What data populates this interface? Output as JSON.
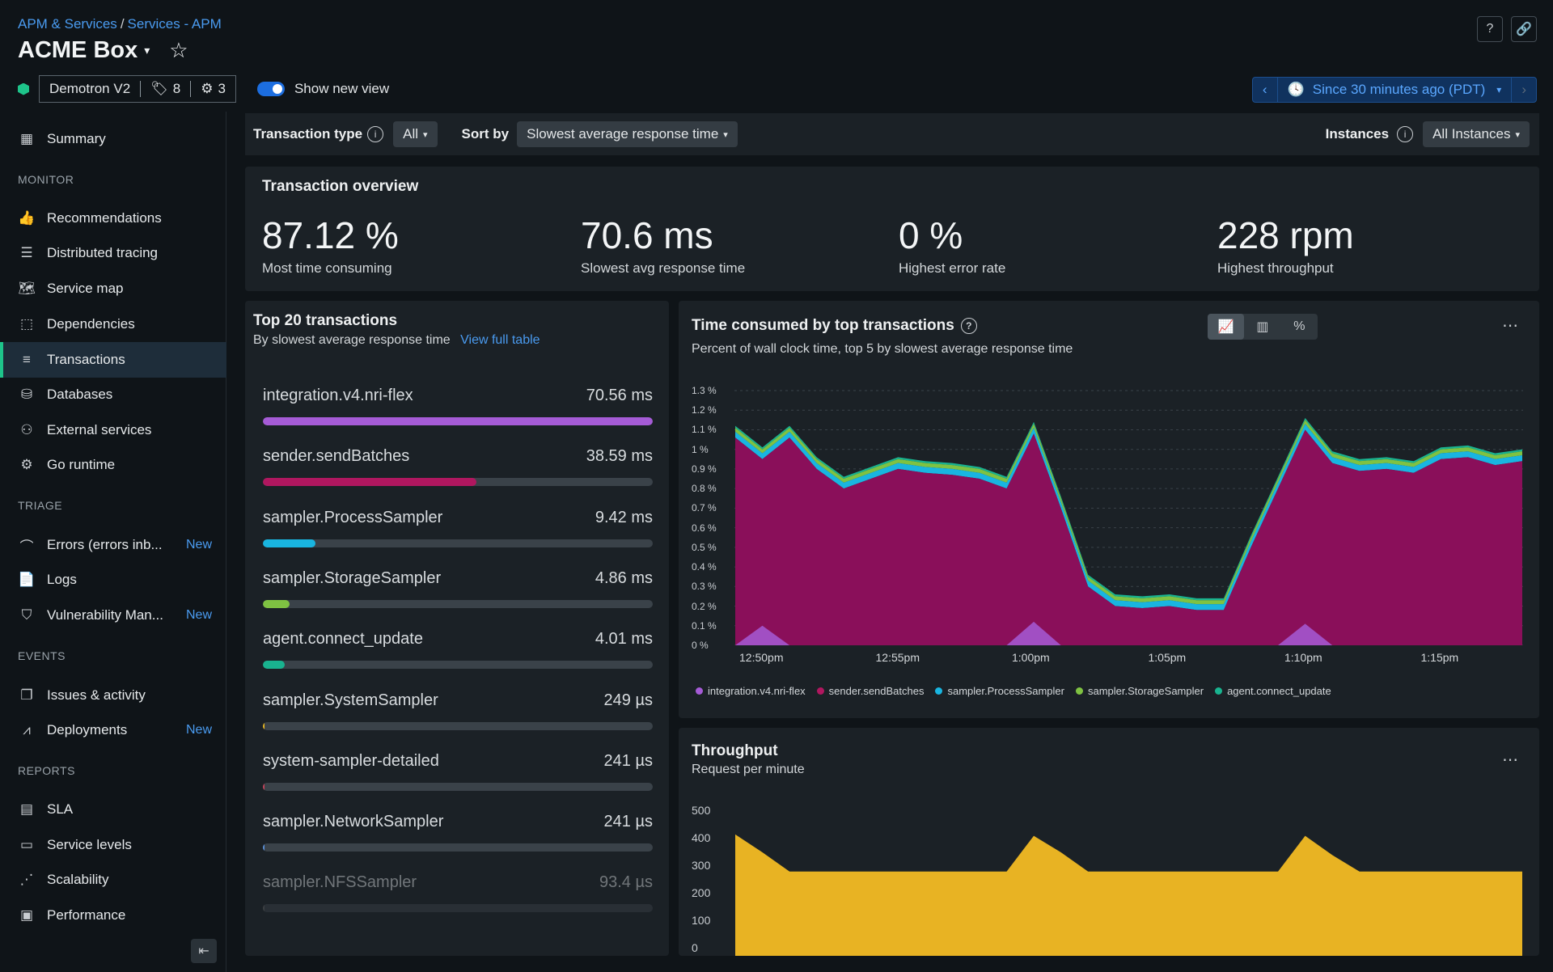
{
  "header": {
    "breadcrumb": [
      "APM & Services",
      "Services - APM"
    ],
    "title": "ACME Box",
    "entity": "Demotron V2",
    "tags_count": "8",
    "hosts_count": "3",
    "toggle_label": "Show new view",
    "time_range": "Since 30 minutes ago (PDT)"
  },
  "sidebar": {
    "summary": "Summary",
    "sections": {
      "monitor": "MONITOR",
      "triage": "TRIAGE",
      "events": "EVENTS",
      "reports": "REPORTS"
    },
    "items": [
      {
        "label": "Recommendations",
        "icon": "thumbs-up-icon"
      },
      {
        "label": "Distributed tracing",
        "icon": "tracing-icon"
      },
      {
        "label": "Service map",
        "icon": "map-icon"
      },
      {
        "label": "Dependencies",
        "icon": "dependencies-icon"
      },
      {
        "label": "Transactions",
        "icon": "transactions-icon"
      },
      {
        "label": "Databases",
        "icon": "database-icon"
      },
      {
        "label": "External services",
        "icon": "external-services-icon"
      },
      {
        "label": "Go runtime",
        "icon": "runtime-icon"
      },
      {
        "label": "Errors (errors inb...",
        "icon": "errors-icon",
        "badge": "New"
      },
      {
        "label": "Logs",
        "icon": "logs-icon"
      },
      {
        "label": "Vulnerability Man...",
        "icon": "shield-icon",
        "badge": "New"
      },
      {
        "label": "Issues & activity",
        "icon": "issues-icon"
      },
      {
        "label": "Deployments",
        "icon": "deployments-icon",
        "badge": "New"
      },
      {
        "label": "SLA",
        "icon": "sla-icon"
      },
      {
        "label": "Service levels",
        "icon": "service-levels-icon"
      },
      {
        "label": "Scalability",
        "icon": "scalability-icon"
      },
      {
        "label": "Performance",
        "icon": "performance-icon"
      }
    ]
  },
  "filters": {
    "transaction_type_label": "Transaction type",
    "transaction_type_value": "All",
    "sort_label": "Sort by",
    "sort_value": "Slowest average response time",
    "instances_label": "Instances",
    "instances_value": "All Instances"
  },
  "overview": {
    "title": "Transaction overview",
    "metrics": [
      {
        "value": "87.12 %",
        "label": "Most time consuming"
      },
      {
        "value": "70.6 ms",
        "label": "Slowest avg response time"
      },
      {
        "value": "0 %",
        "label": "Highest error rate"
      },
      {
        "value": "228 rpm",
        "label": "Highest throughput"
      }
    ]
  },
  "top_transactions": {
    "title": "Top 20 transactions",
    "subtitle": "By slowest average response time",
    "link": "View full table",
    "rows": [
      {
        "name": "integration.v4.nri-flex",
        "value": "70.56 ms",
        "fraction": 1.0,
        "color": "#a55bd6"
      },
      {
        "name": "sender.sendBatches",
        "value": "38.59 ms",
        "fraction": 0.547,
        "color": "#b0175f"
      },
      {
        "name": "sampler.ProcessSampler",
        "value": "9.42 ms",
        "fraction": 0.134,
        "color": "#19b5e0"
      },
      {
        "name": "sampler.StorageSampler",
        "value": "4.86 ms",
        "fraction": 0.069,
        "color": "#7fc242"
      },
      {
        "name": "agent.connect_update",
        "value": "4.01 ms",
        "fraction": 0.057,
        "color": "#19b38f"
      },
      {
        "name": "sampler.SystemSampler",
        "value": "249 µs",
        "fraction": 0.004,
        "color": "#e6b523"
      },
      {
        "name": "system-sampler-detailed",
        "value": "241 µs",
        "fraction": 0.004,
        "color": "#c2435a"
      },
      {
        "name": "sampler.NetworkSampler",
        "value": "241 µs",
        "fraction": 0.004,
        "color": "#5a8fd6"
      },
      {
        "name": "sampler.NFSSampler",
        "value": "93.4 µs",
        "fraction": 0.002,
        "color": "#666"
      }
    ]
  },
  "time_chart": {
    "title": "Time consumed by top transactions",
    "subtitle": "Percent of wall clock time, top 5 by slowest average response time",
    "toggle_icons": [
      "area-chart-icon",
      "bar-chart-icon",
      "percent-icon"
    ]
  },
  "chart_data": [
    {
      "type": "area",
      "title": "Time consumed by top transactions",
      "subtitle": "Percent of wall clock time, top 5 by slowest average response time",
      "y_ticks": [
        "1.3 %",
        "1.2 %",
        "1.1 %",
        "1 %",
        "0.9 %",
        "0.8 %",
        "0.7 %",
        "0.6 %",
        "0.5 %",
        "0.4 %",
        "0.3 %",
        "0.2 %",
        "0.1 %",
        "0 %"
      ],
      "ylim": [
        0,
        1.3
      ],
      "x_ticks": [
        "12:50pm",
        "12:55pm",
        "1:00pm",
        "1:05pm",
        "1:10pm",
        "1:15pm"
      ],
      "x": [
        "12:49",
        "12:50",
        "12:51",
        "12:52",
        "12:53",
        "12:54",
        "12:55",
        "12:56",
        "12:57",
        "12:58",
        "12:59",
        "1:00",
        "1:01",
        "1:02",
        "1:03",
        "1:04",
        "1:05",
        "1:06",
        "1:07",
        "1:08",
        "1:09",
        "1:10",
        "1:11",
        "1:12",
        "1:13",
        "1:14",
        "1:15",
        "1:16",
        "1:17",
        "1:18"
      ],
      "series": [
        {
          "name": "integration.v4.nri-flex",
          "color": "#a55bd6",
          "values": [
            0,
            0.1,
            0,
            0,
            0,
            0,
            0,
            0,
            0,
            0,
            0,
            0.12,
            0,
            0,
            0,
            0,
            0,
            0,
            0,
            0,
            0,
            0.11,
            0,
            0,
            0,
            0,
            0,
            0,
            0,
            0
          ]
        },
        {
          "name": "sender.sendBatches",
          "color": "#8a0f5a",
          "values": [
            1.06,
            0.95,
            1.06,
            0.9,
            0.8,
            0.85,
            0.9,
            0.88,
            0.87,
            0.85,
            0.8,
            1.08,
            0.7,
            0.3,
            0.2,
            0.19,
            0.2,
            0.18,
            0.18,
            0.5,
            0.8,
            1.1,
            0.93,
            0.89,
            0.9,
            0.88,
            0.95,
            0.96,
            0.92,
            0.94
          ]
        },
        {
          "name": "sampler.ProcessSampler",
          "color": "#19b5e0",
          "values": [
            0.03,
            0.03,
            0.03,
            0.03,
            0.03,
            0.03,
            0.03,
            0.03,
            0.03,
            0.03,
            0.03,
            0.03,
            0.03,
            0.03,
            0.03,
            0.03,
            0.03,
            0.03,
            0.03,
            0.03,
            0.03,
            0.03,
            0.03,
            0.03,
            0.03,
            0.03,
            0.03,
            0.03,
            0.03,
            0.03
          ]
        },
        {
          "name": "sampler.StorageSampler",
          "color": "#7fc242",
          "values": [
            0.02,
            0.02,
            0.02,
            0.02,
            0.02,
            0.02,
            0.02,
            0.02,
            0.02,
            0.02,
            0.02,
            0.02,
            0.02,
            0.02,
            0.02,
            0.02,
            0.02,
            0.02,
            0.02,
            0.02,
            0.02,
            0.02,
            0.02,
            0.02,
            0.02,
            0.02,
            0.02,
            0.02,
            0.02,
            0.02
          ]
        },
        {
          "name": "agent.connect_update",
          "color": "#19b38f",
          "values": [
            0.01,
            0.01,
            0.01,
            0.01,
            0.01,
            0.01,
            0.01,
            0.01,
            0.01,
            0.01,
            0.01,
            0.01,
            0.01,
            0.01,
            0.01,
            0.01,
            0.01,
            0.01,
            0.01,
            0.01,
            0.01,
            0.01,
            0.01,
            0.01,
            0.01,
            0.01,
            0.01,
            0.01,
            0.01,
            0.01
          ]
        }
      ]
    },
    {
      "type": "area",
      "title": "Throughput",
      "subtitle": "Request per minute",
      "y_ticks": [
        "500",
        "400",
        "300",
        "200",
        "100",
        "0"
      ],
      "ylim": [
        0,
        500
      ],
      "x": [
        "12:49",
        "12:50",
        "12:51",
        "12:52",
        "12:53",
        "12:54",
        "12:55",
        "12:56",
        "12:57",
        "12:58",
        "12:59",
        "1:00",
        "1:01",
        "1:02",
        "1:03",
        "1:04",
        "1:05",
        "1:06",
        "1:07",
        "1:08",
        "1:09",
        "1:10",
        "1:11",
        "1:12",
        "1:13",
        "1:14",
        "1:15",
        "1:16",
        "1:17",
        "1:18"
      ],
      "series": [
        {
          "color": "#e8b323",
          "values": [
            415,
            350,
            280,
            280,
            280,
            280,
            280,
            280,
            280,
            280,
            280,
            410,
            350,
            280,
            280,
            280,
            280,
            280,
            280,
            280,
            280,
            410,
            340,
            280,
            280,
            280,
            280,
            280,
            280,
            280
          ]
        }
      ]
    }
  ],
  "throughput": {
    "title": "Throughput",
    "subtitle": "Request per minute"
  }
}
